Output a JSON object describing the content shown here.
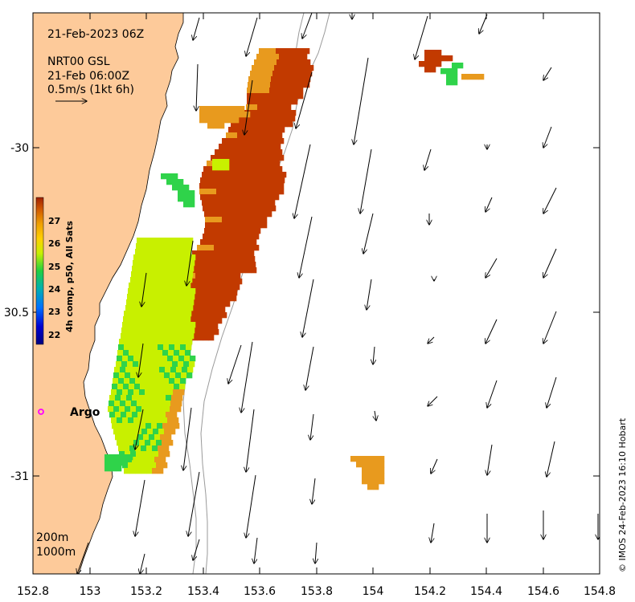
{
  "map": {
    "date_title": "21-Feb-2023 06Z",
    "product_lines": [
      "NRT00 GSL",
      "21-Feb 06:00Z",
      "0.5m/s (1kt 6h)"
    ],
    "scale_arrow_ms": 0.5,
    "colorbar": {
      "label": "4h comp, p50, All Sats",
      "ticks": [
        "27",
        "26",
        "25",
        "24",
        "23",
        "22"
      ],
      "min": 21.5,
      "max": 27.8
    },
    "argo": {
      "label": "Argo",
      "color": "#ff00ff",
      "lon": 152.83,
      "lat": -30.81
    },
    "contours": [
      "200m",
      "1000m"
    ],
    "credit": "© IMOS 24-Feb-2023 16:10 Hobart",
    "x_ticks": [
      "152.8",
      "153",
      "153.2",
      "153.4",
      "153.6",
      "153.8",
      "154",
      "154.2",
      "154.4",
      "154.6",
      "154.8"
    ],
    "y_ticks": [
      "-30",
      "30.5",
      "-31"
    ],
    "x_range": [
      152.8,
      154.8
    ],
    "y_range": [
      -31.3,
      -29.58
    ],
    "colors": {
      "land": "#fdca9a",
      "sst_warm": "#c23a00",
      "sst_mid": "#e89a1e",
      "sst_cool": "#c8f000",
      "sst_cold": "#2fd34a",
      "argo": "#ff00ff"
    }
  }
}
